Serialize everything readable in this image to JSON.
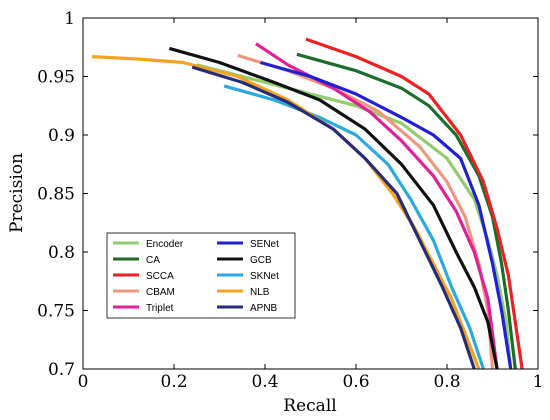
{
  "chart_data": {
    "type": "line",
    "title": "",
    "xlabel": "Recall",
    "ylabel": "Precision",
    "xlim": [
      0,
      1
    ],
    "ylim": [
      0.7,
      1
    ],
    "xticks": [
      0,
      0.2,
      0.4,
      0.6,
      0.8,
      1
    ],
    "xtick_labels": [
      "0",
      "0.2",
      "0.4",
      "0.6",
      "0.8",
      "1"
    ],
    "yticks": [
      0.7,
      0.75,
      0.8,
      0.85,
      0.9,
      0.95,
      1
    ],
    "ytick_labels": [
      "0.7",
      "0.75",
      "0.8",
      "0.85",
      "0.9",
      "0.95",
      "1"
    ],
    "grid": false,
    "legend_position": "lower-left, two columns",
    "series": [
      {
        "name": "Encoder",
        "color": "#8fce6a",
        "x": [
          0.25,
          0.45,
          0.6,
          0.7,
          0.8,
          0.86,
          0.89,
          0.91,
          0.93,
          0.94
        ],
        "y": [
          0.96,
          0.94,
          0.925,
          0.91,
          0.88,
          0.845,
          0.81,
          0.78,
          0.74,
          0.7
        ]
      },
      {
        "name": "CA",
        "color": "#1a6e2a",
        "x": [
          0.47,
          0.6,
          0.7,
          0.76,
          0.82,
          0.87,
          0.9,
          0.92,
          0.935,
          0.95
        ],
        "y": [
          0.969,
          0.955,
          0.94,
          0.925,
          0.9,
          0.865,
          0.83,
          0.79,
          0.75,
          0.7
        ]
      },
      {
        "name": "SCCA",
        "color": "#ee2020",
        "x": [
          0.49,
          0.6,
          0.7,
          0.76,
          0.83,
          0.88,
          0.91,
          0.935,
          0.95,
          0.965
        ],
        "y": [
          0.982,
          0.967,
          0.95,
          0.935,
          0.9,
          0.86,
          0.82,
          0.78,
          0.74,
          0.7
        ]
      },
      {
        "name": "CBAM",
        "color": "#f0967e",
        "x": [
          0.34,
          0.45,
          0.55,
          0.65,
          0.74,
          0.8,
          0.84,
          0.87,
          0.89,
          0.9
        ],
        "y": [
          0.968,
          0.955,
          0.94,
          0.92,
          0.89,
          0.86,
          0.83,
          0.79,
          0.75,
          0.7
        ]
      },
      {
        "name": "Triplet",
        "color": "#e0209a",
        "x": [
          0.38,
          0.45,
          0.55,
          0.63,
          0.7,
          0.77,
          0.82,
          0.86,
          0.89,
          0.91
        ],
        "y": [
          0.978,
          0.96,
          0.94,
          0.92,
          0.895,
          0.865,
          0.835,
          0.8,
          0.76,
          0.7
        ]
      },
      {
        "name": "SENet",
        "color": "#1f1fd6",
        "x": [
          0.39,
          0.5,
          0.6,
          0.7,
          0.77,
          0.83,
          0.87,
          0.9,
          0.92,
          0.94
        ],
        "y": [
          0.962,
          0.95,
          0.935,
          0.915,
          0.9,
          0.88,
          0.84,
          0.79,
          0.75,
          0.7
        ]
      },
      {
        "name": "GCB",
        "color": "#111111",
        "x": [
          0.19,
          0.3,
          0.42,
          0.52,
          0.62,
          0.7,
          0.77,
          0.82,
          0.86,
          0.89,
          0.91
        ],
        "y": [
          0.974,
          0.962,
          0.945,
          0.93,
          0.905,
          0.875,
          0.84,
          0.8,
          0.77,
          0.74,
          0.7
        ]
      },
      {
        "name": "SKNet",
        "color": "#2aa9e0",
        "x": [
          0.31,
          0.42,
          0.52,
          0.6,
          0.67,
          0.72,
          0.77,
          0.81,
          0.85,
          0.88
        ],
        "y": [
          0.942,
          0.93,
          0.915,
          0.9,
          0.875,
          0.845,
          0.81,
          0.77,
          0.735,
          0.7
        ]
      },
      {
        "name": "NLB",
        "color": "#f5a21f",
        "x": [
          0.02,
          0.12,
          0.22,
          0.34,
          0.45,
          0.55,
          0.62,
          0.68,
          0.73,
          0.77,
          0.81,
          0.84,
          0.87
        ],
        "y": [
          0.967,
          0.965,
          0.962,
          0.95,
          0.93,
          0.905,
          0.88,
          0.85,
          0.82,
          0.79,
          0.76,
          0.73,
          0.7
        ]
      },
      {
        "name": "APNB",
        "color": "#262b7a",
        "x": [
          0.24,
          0.35,
          0.45,
          0.55,
          0.62,
          0.69,
          0.74,
          0.79,
          0.83,
          0.86
        ],
        "y": [
          0.958,
          0.945,
          0.928,
          0.905,
          0.88,
          0.85,
          0.81,
          0.77,
          0.735,
          0.7
        ]
      }
    ]
  }
}
